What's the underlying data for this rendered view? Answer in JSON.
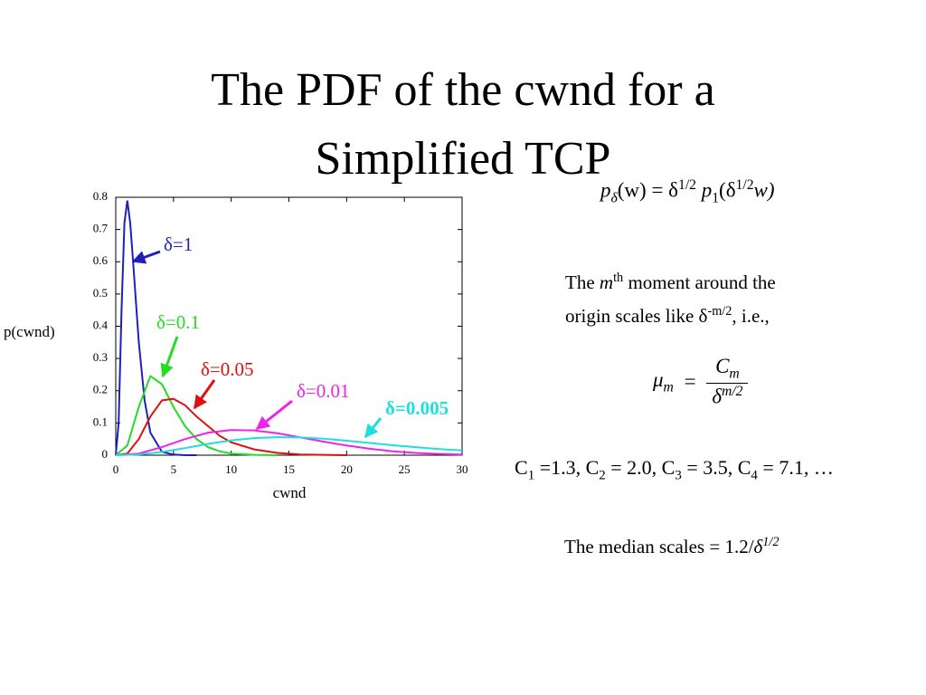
{
  "title": "The PDF of the cwnd for a Simplified TCP",
  "formula_pdf": [
    "p",
    "δ",
    "(w) = δ",
    "1/2",
    "p",
    "1",
    "(δ",
    "1/2",
    "w)"
  ],
  "moment": [
    "The ",
    "m",
    "th",
    " moment around the",
    "origin scales like δ",
    "-m/2",
    ", i.e.,"
  ],
  "formula_mu": [
    "μ",
    "m",
    "=",
    "C",
    "m",
    "δ",
    "m/2"
  ],
  "constants": [
    "C",
    "1",
    " =1.3, C",
    "2",
    " = 2.0, C",
    "3",
    " = 3.5, C",
    "4",
    " = 7.1, …"
  ],
  "median": [
    "The median scales = 1.2/",
    "δ",
    "1/2"
  ],
  "chart_data": {
    "type": "line",
    "xlabel": "cwnd",
    "ylabel": "p(cwnd)",
    "xlim": [
      0,
      30
    ],
    "ylim": [
      0,
      0.8
    ],
    "xticks": [
      0,
      5,
      10,
      15,
      20,
      25,
      30
    ],
    "yticks": [
      0,
      0.1,
      0.2,
      0.3,
      0.4,
      0.5,
      0.6,
      0.7,
      0.8
    ],
    "series": [
      {
        "name": "δ=1",
        "color": "#1f1fbf",
        "x": [
          0,
          0.25,
          0.5,
          0.75,
          1,
          1.25,
          1.5,
          2,
          2.5,
          3,
          4,
          5,
          6,
          7
        ],
        "values": [
          0,
          0.1,
          0.45,
          0.72,
          0.79,
          0.72,
          0.6,
          0.35,
          0.17,
          0.07,
          0.01,
          0.002,
          0,
          0
        ]
      },
      {
        "name": "δ=0.1",
        "color": "#22dd22",
        "x": [
          0,
          1,
          2,
          3,
          4,
          5,
          6,
          7,
          8,
          9,
          10,
          12,
          14
        ],
        "values": [
          0,
          0.03,
          0.15,
          0.245,
          0.22,
          0.15,
          0.09,
          0.05,
          0.025,
          0.012,
          0.005,
          0.001,
          0
        ]
      },
      {
        "name": "δ=0.05",
        "color": "#e01010",
        "x": [
          0,
          1,
          2,
          3,
          4,
          5,
          6,
          7,
          8,
          9,
          10,
          12,
          14,
          16,
          18,
          20
        ],
        "values": [
          0,
          0.005,
          0.05,
          0.12,
          0.17,
          0.175,
          0.155,
          0.12,
          0.09,
          0.06,
          0.04,
          0.018,
          0.007,
          0.002,
          0.001,
          0
        ]
      },
      {
        "name": "δ=0.01",
        "color": "#ee22ee",
        "x": [
          0,
          2,
          4,
          6,
          8,
          10,
          12,
          14,
          16,
          18,
          20,
          22,
          24,
          26,
          28,
          30
        ],
        "values": [
          0,
          0.005,
          0.025,
          0.05,
          0.07,
          0.078,
          0.077,
          0.068,
          0.055,
          0.042,
          0.03,
          0.02,
          0.012,
          0.007,
          0.004,
          0.002
        ]
      },
      {
        "name": "δ=0.005",
        "color": "#22dddd",
        "x": [
          0,
          2,
          4,
          6,
          8,
          10,
          12,
          14,
          16,
          18,
          20,
          22,
          24,
          26,
          28,
          30
        ],
        "values": [
          0,
          0.002,
          0.01,
          0.022,
          0.035,
          0.046,
          0.053,
          0.056,
          0.055,
          0.051,
          0.045,
          0.038,
          0.031,
          0.025,
          0.019,
          0.015
        ]
      }
    ]
  }
}
